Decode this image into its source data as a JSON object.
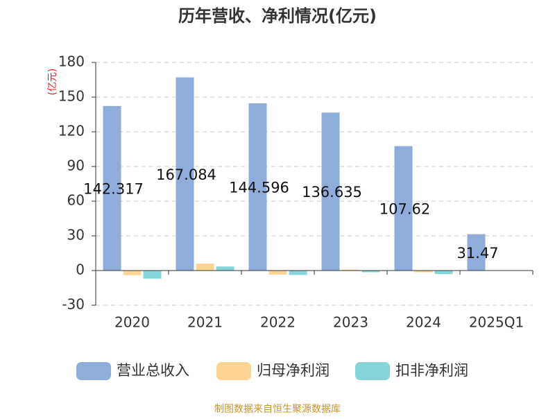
{
  "chart_data": {
    "type": "bar",
    "title": "历年营收、净利情况(亿元)",
    "y_label": "(亿元)",
    "categories": [
      "2020",
      "2021",
      "2022",
      "2023",
      "2024",
      "2025Q1"
    ],
    "series": [
      {
        "name": "营业总收入",
        "color": "#8eaddb",
        "values": [
          142.317,
          167.084,
          144.596,
          136.635,
          107.62,
          31.47
        ]
      },
      {
        "name": "归母净利润",
        "color": "#fdd592",
        "values": [
          -4,
          6,
          -3.5,
          0.8,
          -1.5,
          null
        ]
      },
      {
        "name": "扣非净利润",
        "color": "#86d5d8",
        "values": [
          -7,
          3.5,
          -3.8,
          -1.5,
          -3,
          null
        ]
      }
    ],
    "ylim": [
      -30,
      180
    ],
    "yticks": [
      -30,
      0,
      30,
      60,
      90,
      120,
      150,
      180
    ],
    "grid": true,
    "source": "制图数据来自恒生聚源数据库"
  }
}
